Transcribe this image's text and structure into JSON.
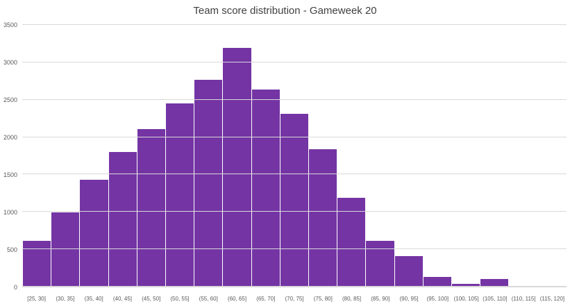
{
  "chart_data": {
    "type": "bar",
    "subtype": "histogram",
    "title": "Team score distribution - Gameweek 20",
    "categories": [
      "[25, 30]",
      "(30, 35]",
      "(35, 40]",
      "(40, 45]",
      "(45, 50]",
      "(50, 55]",
      "(55, 60]",
      "(60, 65]",
      "(65, 70]",
      "(70, 75]",
      "(75, 80]",
      "(80, 85]",
      "(85, 90]",
      "(90, 95]",
      "(95, 100]",
      "(100, 105]",
      "(105, 110]",
      "(110, 115]",
      "(115, 120]"
    ],
    "values": [
      620,
      1000,
      1440,
      1810,
      2120,
      2460,
      2780,
      3200,
      2650,
      2320,
      1850,
      1200,
      620,
      420,
      140,
      50,
      110,
      15,
      5
    ],
    "xlabel": "",
    "ylabel": "",
    "ylim": [
      0,
      3500
    ],
    "yticks": [
      0,
      500,
      1000,
      1500,
      2000,
      2500,
      3000,
      3500
    ],
    "grid": true,
    "legend": "none",
    "colors": {
      "bar": "#7434a4",
      "gridline": "#d9d9d9",
      "axis_text": "#595959",
      "title_text": "#404040"
    }
  }
}
